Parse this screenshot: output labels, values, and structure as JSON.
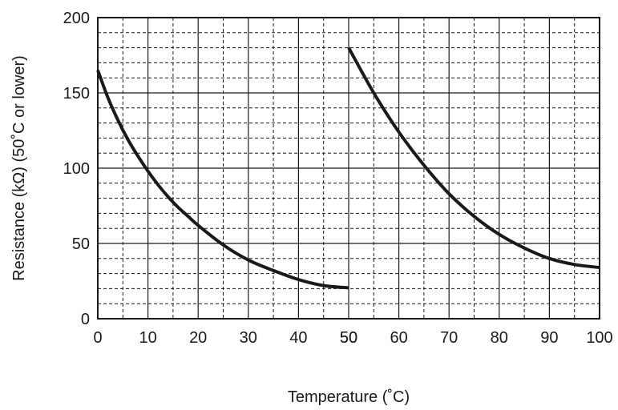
{
  "chart_data": {
    "type": "line",
    "title": "",
    "xlabel": "Temperature (˚C)",
    "ylabel": "Resistance (kΩ) (50˚C or lower)",
    "ylim": [
      0,
      200
    ],
    "y_ticks": [
      "0",
      "50",
      "100",
      "150",
      "200"
    ],
    "x_tick_labels": [
      "0",
      "10",
      "20",
      "30",
      "40",
      "50",
      "50",
      "60",
      "70",
      "80",
      "90",
      "100"
    ],
    "grid": "major solid, minor dashed",
    "segments": [
      {
        "x": [
          0,
          2,
          4,
          6,
          8,
          10,
          12,
          14,
          16,
          18,
          20,
          25,
          30,
          35,
          40,
          45,
          50
        ],
        "values": [
          165,
          147,
          132,
          119,
          108,
          98,
          89,
          81,
          74,
          68,
          62,
          49,
          39,
          32,
          26,
          22,
          20.5
        ]
      },
      {
        "x": [
          50,
          55,
          60,
          65,
          70,
          75,
          80,
          85,
          90,
          95,
          100
        ],
        "values": [
          180,
          150,
          124,
          102,
          83,
          68,
          56,
          47,
          40,
          36,
          34
        ]
      }
    ],
    "colors": {
      "line": "#1a1a1a",
      "grid": "#1a1a1a",
      "background": "#ffffff"
    }
  }
}
